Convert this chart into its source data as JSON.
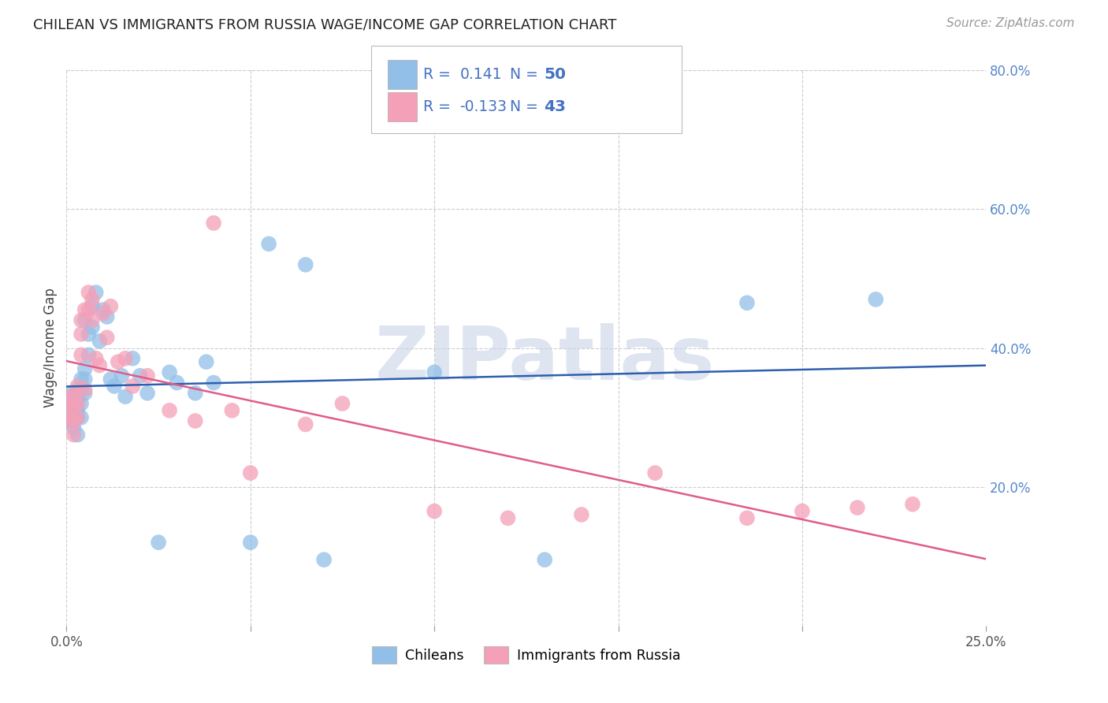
{
  "title": "CHILEAN VS IMMIGRANTS FROM RUSSIA WAGE/INCOME GAP CORRELATION CHART",
  "source": "Source: ZipAtlas.com",
  "ylabel": "Wage/Income Gap",
  "watermark": "ZIPatlas",
  "xlim": [
    0.0,
    0.25
  ],
  "ylim": [
    0.0,
    0.8
  ],
  "xticks": [
    0.0,
    0.05,
    0.1,
    0.15,
    0.2,
    0.25
  ],
  "xtick_labels_visible": [
    "0.0%",
    "",
    "",
    "",
    "",
    "25.0%"
  ],
  "yticks_right": [
    0.2,
    0.4,
    0.6,
    0.8
  ],
  "ytick_labels_right": [
    "20.0%",
    "40.0%",
    "60.0%",
    "80.0%"
  ],
  "chilean_color": "#92BFE8",
  "russian_color": "#F4A0B8",
  "trend_blue": "#2E5FAC",
  "trend_pink": "#E05C8A",
  "legend_label1": "Chileans",
  "legend_label2": "Immigrants from Russia",
  "legend_text_color": "#4472C4",
  "background_color": "#FFFFFF",
  "grid_color": "#CCCCCC",
  "title_fontsize": 13,
  "label_fontsize": 12,
  "tick_fontsize": 12,
  "source_fontsize": 11,
  "watermark_fontsize": 68,
  "watermark_color": "#C8D4E8",
  "chilean_x": [
    0.001,
    0.001,
    0.001,
    0.002,
    0.002,
    0.002,
    0.002,
    0.002,
    0.003,
    0.003,
    0.003,
    0.003,
    0.003,
    0.004,
    0.004,
    0.004,
    0.004,
    0.005,
    0.005,
    0.005,
    0.005,
    0.006,
    0.006,
    0.007,
    0.007,
    0.008,
    0.009,
    0.01,
    0.011,
    0.012,
    0.013,
    0.015,
    0.016,
    0.018,
    0.02,
    0.022,
    0.025,
    0.028,
    0.03,
    0.035,
    0.038,
    0.04,
    0.05,
    0.055,
    0.065,
    0.07,
    0.1,
    0.13,
    0.185,
    0.22
  ],
  "chilean_y": [
    0.335,
    0.315,
    0.295,
    0.33,
    0.32,
    0.305,
    0.295,
    0.285,
    0.34,
    0.325,
    0.31,
    0.3,
    0.275,
    0.355,
    0.34,
    0.32,
    0.3,
    0.37,
    0.355,
    0.335,
    0.44,
    0.42,
    0.39,
    0.46,
    0.43,
    0.48,
    0.41,
    0.455,
    0.445,
    0.355,
    0.345,
    0.36,
    0.33,
    0.385,
    0.36,
    0.335,
    0.12,
    0.365,
    0.35,
    0.335,
    0.38,
    0.35,
    0.12,
    0.55,
    0.52,
    0.095,
    0.365,
    0.095,
    0.465,
    0.47
  ],
  "russian_x": [
    0.001,
    0.001,
    0.001,
    0.002,
    0.002,
    0.002,
    0.002,
    0.003,
    0.003,
    0.003,
    0.004,
    0.004,
    0.004,
    0.005,
    0.005,
    0.006,
    0.006,
    0.007,
    0.007,
    0.008,
    0.009,
    0.01,
    0.011,
    0.012,
    0.014,
    0.016,
    0.018,
    0.022,
    0.028,
    0.035,
    0.04,
    0.045,
    0.05,
    0.065,
    0.075,
    0.1,
    0.12,
    0.14,
    0.16,
    0.185,
    0.2,
    0.215,
    0.23
  ],
  "russian_y": [
    0.33,
    0.31,
    0.295,
    0.33,
    0.315,
    0.295,
    0.275,
    0.345,
    0.32,
    0.3,
    0.44,
    0.42,
    0.39,
    0.455,
    0.34,
    0.48,
    0.455,
    0.47,
    0.44,
    0.385,
    0.375,
    0.45,
    0.415,
    0.46,
    0.38,
    0.385,
    0.345,
    0.36,
    0.31,
    0.295,
    0.58,
    0.31,
    0.22,
    0.29,
    0.32,
    0.165,
    0.155,
    0.16,
    0.22,
    0.155,
    0.165,
    0.17,
    0.175
  ]
}
